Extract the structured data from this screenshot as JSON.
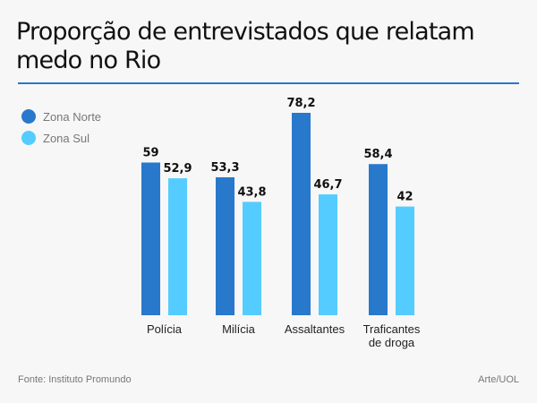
{
  "chart_data": {
    "type": "bar",
    "title": "Proporção de entrevistados que relatam medo no Rio",
    "xlabel": "",
    "ylabel": "",
    "ylim": [
      0,
      80
    ],
    "grid": false,
    "legend_position": "top-left",
    "categories": [
      [
        "Polícia"
      ],
      [
        "Milícia"
      ],
      [
        "Assaltantes"
      ],
      [
        "Traficantes",
        "de droga"
      ]
    ],
    "series": [
      {
        "name": "Zona Norte",
        "color": "#2878cc",
        "values": [
          59,
          53.3,
          78.2,
          58.4
        ],
        "labels": [
          "59",
          "53,3",
          "78,2",
          "58,4"
        ]
      },
      {
        "name": "Zona Sul",
        "color": "#55ccff",
        "values": [
          52.9,
          43.8,
          46.7,
          42
        ],
        "labels": [
          "52,9",
          "43,8",
          "46,7",
          "42"
        ]
      }
    ]
  },
  "header": {
    "title": "Proporção de entrevistados que relatam medo no Rio",
    "rule_color": "#2878cc"
  },
  "footer": {
    "source": "Fonte: Instituto Promundo",
    "credit": "Arte/UOL"
  }
}
